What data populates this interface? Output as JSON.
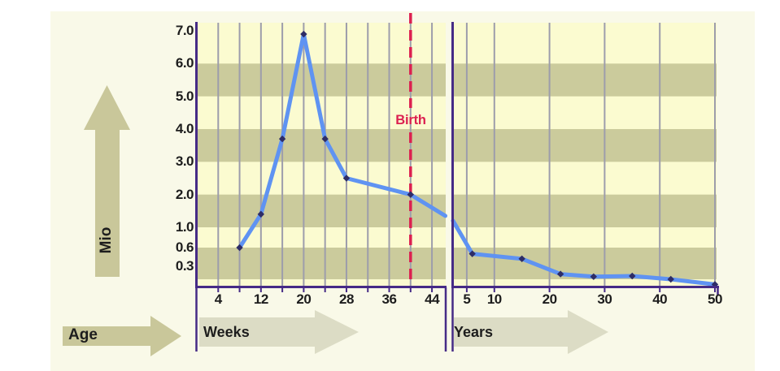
{
  "chart_data": {
    "type": "line",
    "ylabel": "Mio",
    "age_label": "Age",
    "birth_label": "Birth",
    "y_ticks": [
      {
        "label": "7.0",
        "value": 7.0
      },
      {
        "label": "6.0",
        "value": 6.0
      },
      {
        "label": "5.0",
        "value": 5.0
      },
      {
        "label": "4.0",
        "value": 4.0
      },
      {
        "label": "3.0",
        "value": 3.0
      },
      {
        "label": "2.0",
        "value": 2.0
      },
      {
        "label": "1.0",
        "value": 1.0
      },
      {
        "label": "0.6",
        "value": 0.6
      },
      {
        "label": "0.3",
        "value": 0.3
      }
    ],
    "y_range": [
      0,
      7
    ],
    "grid": true,
    "legend_position": "none",
    "panels": [
      {
        "name": "prenatal",
        "axis_label": "Weeks",
        "x_range": [
          0,
          46.5
        ],
        "x_ticks": [
          {
            "label": "4",
            "value": 4
          },
          {
            "label": "12",
            "value": 12
          },
          {
            "label": "20",
            "value": 20
          },
          {
            "label": "28",
            "value": 28
          },
          {
            "label": "36",
            "value": 36
          },
          {
            "label": "44",
            "value": 44
          }
        ],
        "gridline_values": [
          4,
          8,
          12,
          16,
          20,
          24,
          28,
          32,
          36,
          40,
          44
        ],
        "points": [
          {
            "x": 8,
            "y": 0.6
          },
          {
            "x": 12,
            "y": 1.4
          },
          {
            "x": 16,
            "y": 3.7
          },
          {
            "x": 20,
            "y": 6.9
          },
          {
            "x": 24,
            "y": 3.7
          },
          {
            "x": 28,
            "y": 2.5
          },
          {
            "x": 40,
            "y": 2.0
          }
        ],
        "line_edge_end": {
          "x": 46.5,
          "y": 1.35
        },
        "birth_line_x": 40
      },
      {
        "name": "postnatal",
        "axis_label": "Years",
        "x_range": [
          2.5,
          50.3
        ],
        "x_ticks": [
          {
            "label": "5",
            "value": 5
          },
          {
            "label": "10",
            "value": 10
          },
          {
            "label": "20",
            "value": 20
          },
          {
            "label": "30",
            "value": 30
          },
          {
            "label": "40",
            "value": 40
          },
          {
            "label": "50",
            "value": 50
          }
        ],
        "gridline_values": [
          5,
          10,
          20,
          30,
          40,
          50
        ],
        "points": [
          {
            "x": 6,
            "y": 0.5
          },
          {
            "x": 15,
            "y": 0.42
          },
          {
            "x": 22,
            "y": 0.18
          },
          {
            "x": 28,
            "y": 0.14
          },
          {
            "x": 35,
            "y": 0.15
          },
          {
            "x": 42,
            "y": 0.1
          },
          {
            "x": 50,
            "y": 0.02
          }
        ],
        "line_edge_start": {
          "x": 2.5,
          "y": 1.2
        }
      }
    ],
    "stripe_dark_bands": [
      [
        6,
        5
      ],
      [
        4,
        3
      ],
      [
        2,
        1
      ],
      [
        0.6,
        0.1
      ]
    ]
  },
  "colors": {
    "page_bg": "#ffffff",
    "panel_bg": "#f9f9e8",
    "stripe_light": "#fbfbd0",
    "stripe_dark": "#cbcb9c",
    "gridline": "#9d9dab",
    "axis": "#462b86",
    "line": "#5f93f2",
    "marker": "#2e2d66",
    "birth": "#dc2050",
    "text": "#1d1d1d",
    "arrow_light": "#dcdcc5",
    "arrow_dark": "#c9c79a"
  }
}
